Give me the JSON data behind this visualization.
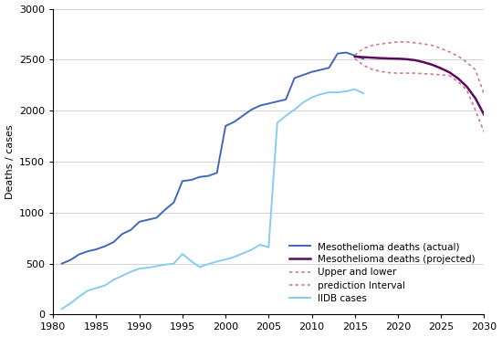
{
  "ylabel": "Deaths / cases",
  "xlim": [
    1980,
    2030
  ],
  "ylim": [
    0,
    3000
  ],
  "xticks": [
    1980,
    1985,
    1990,
    1995,
    2000,
    2005,
    2010,
    2015,
    2020,
    2025,
    2030
  ],
  "yticks": [
    0,
    500,
    1000,
    1500,
    2000,
    2500,
    3000
  ],
  "actual_color": "#4466bb",
  "projected_color": "#5b0a5e",
  "upper_color": "#cc7799",
  "iidb_color": "#88ccee",
  "actual_deaths": {
    "years": [
      1981,
      1982,
      1983,
      1984,
      1985,
      1986,
      1987,
      1988,
      1989,
      1990,
      1991,
      1992,
      1993,
      1994,
      1995,
      1996,
      1997,
      1998,
      1999,
      2000,
      2001,
      2002,
      2003,
      2004,
      2005,
      2006,
      2007,
      2008,
      2009,
      2010,
      2011,
      2012,
      2013,
      2014,
      2015,
      2016
    ],
    "values": [
      500,
      535,
      590,
      620,
      640,
      670,
      710,
      790,
      830,
      910,
      930,
      950,
      1030,
      1100,
      1310,
      1320,
      1350,
      1360,
      1390,
      1850,
      1890,
      1950,
      2010,
      2050,
      2070,
      2090,
      2110,
      2320,
      2350,
      2380,
      2400,
      2420,
      2560,
      2570,
      2540,
      2510
    ]
  },
  "projected_deaths": {
    "years": [
      2015,
      2016,
      2017,
      2018,
      2019,
      2020,
      2021,
      2022,
      2023,
      2024,
      2025,
      2026,
      2027,
      2028,
      2029,
      2030
    ],
    "values": [
      2530,
      2525,
      2520,
      2515,
      2512,
      2510,
      2505,
      2495,
      2475,
      2450,
      2415,
      2375,
      2315,
      2235,
      2120,
      1960
    ]
  },
  "upper_bound": {
    "years": [
      2015,
      2016,
      2017,
      2018,
      2019,
      2020,
      2021,
      2022,
      2023,
      2024,
      2025,
      2026,
      2027,
      2028,
      2029,
      2030
    ],
    "values": [
      2545,
      2610,
      2640,
      2655,
      2665,
      2675,
      2675,
      2665,
      2655,
      2640,
      2610,
      2575,
      2535,
      2475,
      2400,
      2160
    ]
  },
  "lower_bound": {
    "years": [
      2015,
      2016,
      2017,
      2018,
      2019,
      2020,
      2021,
      2022,
      2023,
      2024,
      2025,
      2026,
      2027,
      2028,
      2029,
      2030
    ],
    "values": [
      2510,
      2445,
      2405,
      2385,
      2372,
      2368,
      2368,
      2368,
      2362,
      2358,
      2352,
      2342,
      2282,
      2202,
      2002,
      1790
    ]
  },
  "iidb_cases": {
    "years": [
      1981,
      1982,
      1983,
      1984,
      1985,
      1986,
      1987,
      1988,
      1989,
      1990,
      1991,
      1992,
      1993,
      1994,
      1995,
      1996,
      1997,
      1998,
      1999,
      2000,
      2001,
      2002,
      2003,
      2004,
      2005,
      2006,
      2007,
      2008,
      2009,
      2010,
      2011,
      2012,
      2013,
      2014,
      2015,
      2016
    ],
    "values": [
      55,
      110,
      175,
      235,
      260,
      285,
      340,
      380,
      420,
      450,
      460,
      475,
      490,
      500,
      595,
      525,
      465,
      495,
      520,
      540,
      565,
      600,
      635,
      685,
      660,
      1880,
      1950,
      2010,
      2080,
      2130,
      2160,
      2180,
      2180,
      2190,
      2210,
      2170
    ]
  },
  "legend_fontsize": 7.5,
  "tick_fontsize": 8,
  "figwidth": 5.5,
  "figheight": 3.69,
  "dpi": 100
}
